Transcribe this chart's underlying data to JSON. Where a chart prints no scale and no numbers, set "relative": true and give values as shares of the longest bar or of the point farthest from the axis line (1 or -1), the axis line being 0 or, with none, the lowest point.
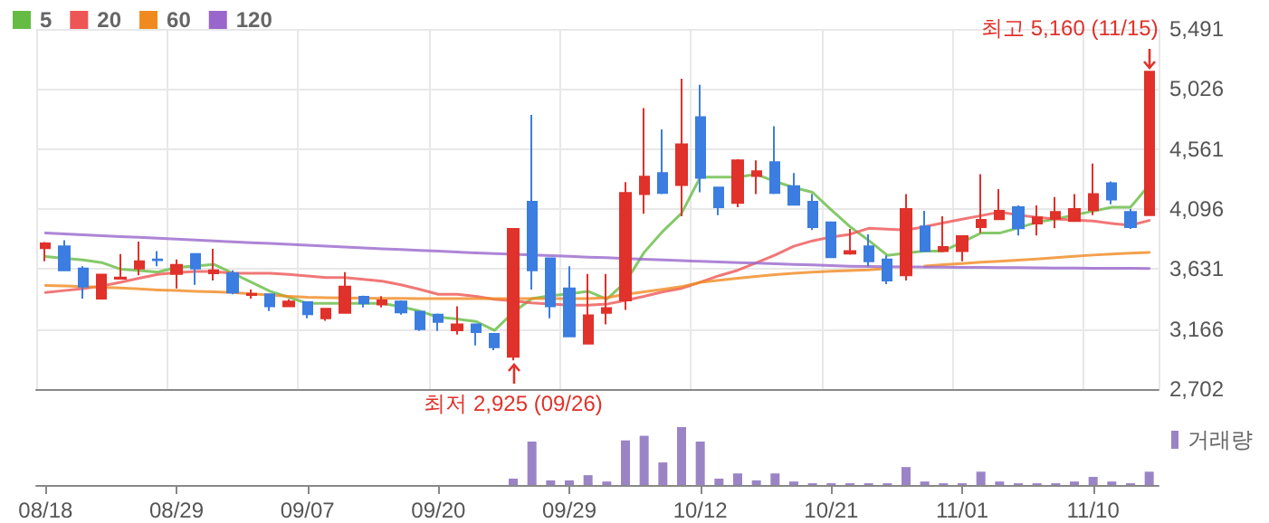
{
  "chart_data": [
    {
      "type": "candlestick",
      "categories": [
        null,
        null,
        null,
        null,
        null,
        null,
        null,
        null,
        null,
        null,
        null,
        null,
        null,
        null,
        null,
        null,
        null,
        null,
        null,
        null,
        null,
        null,
        null,
        null,
        null,
        null,
        null,
        null,
        null,
        null,
        null,
        null,
        null,
        null,
        null,
        null,
        null,
        null,
        null,
        null,
        null,
        null,
        null,
        null,
        null,
        null,
        null,
        null,
        null,
        null,
        null,
        null,
        null,
        null,
        null,
        null,
        null,
        null,
        null,
        null
      ],
      "ohlc": [
        [
          3794,
          3840,
          3691,
          3831
        ],
        [
          3808,
          3854,
          3622,
          3622
        ],
        [
          3636,
          3654,
          3403,
          3496
        ],
        [
          3403,
          3589,
          3403,
          3589
        ],
        [
          3557,
          3747,
          3557,
          3566
        ],
        [
          3636,
          3845,
          3584,
          3691
        ],
        [
          3705,
          3770,
          3654,
          3701
        ],
        [
          3594,
          3705,
          3482,
          3664
        ],
        [
          3747,
          3747,
          3510,
          3636
        ],
        [
          3599,
          3789,
          3543,
          3622
        ],
        [
          3599,
          3622,
          3436,
          3450
        ],
        [
          3431,
          3473,
          3403,
          3440
        ],
        [
          3436,
          3436,
          3306,
          3343
        ],
        [
          3343,
          3398,
          3343,
          3380
        ],
        [
          3375,
          3375,
          3250,
          3282
        ],
        [
          3250,
          3324,
          3231,
          3324
        ],
        [
          3292,
          3608,
          3292,
          3496
        ],
        [
          3417,
          3426,
          3334,
          3366
        ],
        [
          3357,
          3422,
          3334,
          3389
        ],
        [
          3380,
          3389,
          3278,
          3296
        ],
        [
          3301,
          3301,
          3152,
          3166
        ],
        [
          3278,
          3287,
          3152,
          3222
        ],
        [
          3157,
          3343,
          3124,
          3203
        ],
        [
          3203,
          3203,
          3040,
          3143
        ],
        [
          3129,
          3129,
          3003,
          3026
        ],
        [
          2952,
          3943,
          2925,
          3943
        ],
        [
          4152,
          4826,
          3473,
          3622
        ],
        [
          3715,
          3715,
          3250,
          3343
        ],
        [
          3482,
          3654,
          3110,
          3110
        ],
        [
          3054,
          3594,
          3054,
          3273
        ],
        [
          3292,
          3594,
          3203,
          3329
        ],
        [
          3389,
          4305,
          3315,
          4221
        ],
        [
          4212,
          4877,
          4059,
          4347
        ],
        [
          4375,
          4714,
          4212,
          4221
        ],
        [
          4282,
          5105,
          4040,
          4598
        ],
        [
          4807,
          5059,
          4226,
          4338
        ],
        [
          4263,
          4263,
          4050,
          4110
        ],
        [
          4143,
          4482,
          4110,
          4473
        ],
        [
          4352,
          4473,
          4212,
          4389
        ],
        [
          4459,
          4738,
          4212,
          4221
        ],
        [
          4273,
          4375,
          4129,
          4129
        ],
        [
          4152,
          4212,
          3933,
          3956
        ],
        [
          3994,
          3994,
          3724,
          3724
        ],
        [
          3752,
          3943,
          3743,
          3770
        ],
        [
          3808,
          3901,
          3654,
          3691
        ],
        [
          3705,
          3738,
          3515,
          3543
        ],
        [
          3584,
          4212,
          3543,
          4096
        ],
        [
          3961,
          4082,
          3771,
          3771
        ],
        [
          3771,
          4040,
          3771,
          3803
        ],
        [
          3771,
          3887,
          3691,
          3887
        ],
        [
          3956,
          4366,
          3910,
          4012
        ],
        [
          4017,
          4250,
          4017,
          4082
        ],
        [
          4110,
          4124,
          3891,
          3947
        ],
        [
          3984,
          4124,
          3891,
          4031
        ],
        [
          4022,
          4189,
          3947,
          4073
        ],
        [
          4003,
          4212,
          4003,
          4096
        ],
        [
          4087,
          4449,
          4050,
          4212
        ],
        [
          4296,
          4310,
          4133,
          4170
        ],
        [
          4073,
          4096,
          3942,
          3956
        ],
        [
          4050,
          5160,
          4050,
          5160
        ]
      ],
      "colors": [
        "#e0312a",
        "#3b7de0",
        "#3b7de0",
        "#e0312a",
        "#e0312a",
        "#e0312a",
        "#3b7de0",
        "#e0312a",
        "#3b7de0",
        "#e0312a",
        "#3b7de0",
        "#e0312a",
        "#3b7de0",
        "#e0312a",
        "#3b7de0",
        "#e0312a",
        "#e0312a",
        "#3b7de0",
        "#e0312a",
        "#3b7de0",
        "#3b7de0",
        "#3b7de0",
        "#e0312a",
        "#3b7de0",
        "#3b7de0",
        "#e0312a",
        "#3b7de0",
        "#3b7de0",
        "#3b7de0",
        "#e0312a",
        "#e0312a",
        "#e0312a",
        "#e0312a",
        "#3b7de0",
        "#e0312a",
        "#3b7de0",
        "#3b7de0",
        "#e0312a",
        "#e0312a",
        "#3b7de0",
        "#3b7de0",
        "#3b7de0",
        "#3b7de0",
        "#e0312a",
        "#3b7de0",
        "#3b7de0",
        "#e0312a",
        "#3b7de0",
        "#e0312a",
        "#e0312a",
        "#e0312a",
        "#e0312a",
        "#3b7de0",
        "#e0312a",
        "#e0312a",
        "#e0312a",
        "#e0312a",
        "#3b7de0",
        "#3b7de0",
        "#e0312a"
      ],
      "series": [
        {
          "type": "line",
          "name": "5",
          "color": "#66bb44",
          "values": [
            3729,
            3715,
            3703,
            3682,
            3631,
            3620,
            3608,
            3645,
            3655,
            3668,
            3599,
            3530,
            3460,
            3413,
            3366,
            3366,
            3366,
            3366,
            3366,
            3340,
            3306,
            3259,
            3245,
            3226,
            3157,
            3296,
            3403,
            3426,
            3440,
            3459,
            3398,
            3529,
            3761,
            3924,
            4064,
            4343,
            4343,
            4343,
            4366,
            4310,
            4263,
            4226,
            4090,
            3960,
            3854,
            3738,
            3755,
            3771,
            3771,
            3840,
            3910,
            3910,
            3950,
            3994,
            4020,
            4050,
            4080,
            4110,
            4110,
            4282
          ]
        },
        {
          "type": "line",
          "name": "20",
          "color": "#ee5555",
          "values": [
            3450,
            3465,
            3480,
            3500,
            3529,
            3560,
            3590,
            3605,
            3613,
            3613,
            3599,
            3599,
            3599,
            3590,
            3578,
            3566,
            3566,
            3552,
            3538,
            3510,
            3475,
            3436,
            3436,
            3420,
            3398,
            3385,
            3370,
            3360,
            3352,
            3352,
            3360,
            3389,
            3420,
            3455,
            3482,
            3530,
            3580,
            3622,
            3680,
            3740,
            3808,
            3850,
            3880,
            3901,
            3947,
            3940,
            3933,
            3960,
            3990,
            4017,
            4045,
            4073,
            4050,
            4031,
            4020,
            4010,
            4003,
            3985,
            3970,
            4008
          ]
        },
        {
          "type": "line",
          "name": "60",
          "color": "#f08a20",
          "values": [
            3505,
            3500,
            3495,
            3490,
            3485,
            3478,
            3470,
            3465,
            3459,
            3455,
            3450,
            3440,
            3430,
            3420,
            3413,
            3410,
            3408,
            3406,
            3405,
            3404,
            3403,
            3403,
            3403,
            3403,
            3403,
            3403,
            3403,
            3403,
            3403,
            3403,
            3410,
            3436,
            3455,
            3475,
            3495,
            3529,
            3545,
            3560,
            3575,
            3588,
            3599,
            3608,
            3615,
            3620,
            3625,
            3635,
            null,
            3655,
            3665,
            3675,
            3685,
            3691,
            3700,
            3710,
            3720,
            3730,
            3740,
            3748,
            3755,
            3761
          ]
        },
        {
          "type": "line",
          "name": "120",
          "color": "#9966cc",
          "values": [
            3910,
            3903,
            3897,
            3890,
            3883,
            3877,
            3870,
            3863,
            3856,
            3850,
            3843,
            3836,
            3830,
            3823,
            3816,
            3810,
            3803,
            3796,
            3789,
            3783,
            3776,
            3770,
            3763,
            3757,
            3752,
            3746,
            3741,
            3735,
            3730,
            3724,
            3719,
            3713,
            3708,
            3702,
            3697,
            3691,
            3686,
            3682,
            3677,
            3672,
            3668,
            3663,
            3659,
            3654,
            3652,
            3650,
            3648,
            3647,
            3646,
            3645,
            3644,
            3643,
            3642,
            3641,
            3640,
            3639,
            3638,
            3637,
            3637,
            3636
          ]
        }
      ],
      "ylim": [
        2702,
        5491
      ],
      "yticks": [
        {
          "value": 2702,
          "label": "2,702"
        },
        {
          "value": 3166,
          "label": "3,166"
        },
        {
          "value": 3631,
          "label": "3,631"
        },
        {
          "value": 4096,
          "label": "4,096"
        },
        {
          "value": 4561,
          "label": "4,561"
        },
        {
          "value": 5026,
          "label": "5,026"
        },
        {
          "value": 5491,
          "label": "5,491"
        }
      ],
      "annotations": [
        "최고 5,160 (11/15)",
        "최저 2,925 (09/26)"
      ],
      "grid": true,
      "legend": "top left",
      "tick_labels": "y"
    },
    {
      "type": "bar",
      "relative": true,
      "categories": [
        "08/18",
        null,
        null,
        null,
        null,
        null,
        null,
        "08/29",
        null,
        null,
        null,
        null,
        null,
        null,
        "09/07",
        null,
        null,
        null,
        null,
        null,
        null,
        "09/20",
        null,
        null,
        null,
        null,
        null,
        null,
        "09/29",
        null,
        null,
        null,
        null,
        null,
        null,
        "10/12",
        null,
        null,
        null,
        null,
        null,
        null,
        "10/21",
        null,
        null,
        null,
        null,
        null,
        null,
        "11/01",
        null,
        null,
        null,
        null,
        null,
        null,
        "11/10",
        null,
        null,
        null
      ],
      "series": [
        {
          "name": "거래량",
          "color": "#9b84c6",
          "values": [
            null,
            null,
            null,
            null,
            null,
            null,
            null,
            null,
            null,
            null,
            null,
            null,
            null,
            null,
            null,
            null,
            null,
            null,
            null,
            null,
            null,
            null,
            null,
            null,
            null,
            0.11,
            0.75,
            0.08,
            0.08,
            0.17,
            0.06,
            0.77,
            0.85,
            0.39,
            1,
            0.75,
            0.11,
            0.2,
            0.08,
            0.2,
            0.06,
            0.03,
            0.03,
            0.03,
            0.03,
            0.03,
            0.31,
            0.06,
            0.03,
            0.03,
            0.23,
            0.06,
            0.03,
            0.03,
            0.03,
            0.06,
            0.14,
            0.06,
            0.03,
            0.23
          ]
        }
      ],
      "legend": "top right",
      "tick_labels": "x"
    }
  ]
}
